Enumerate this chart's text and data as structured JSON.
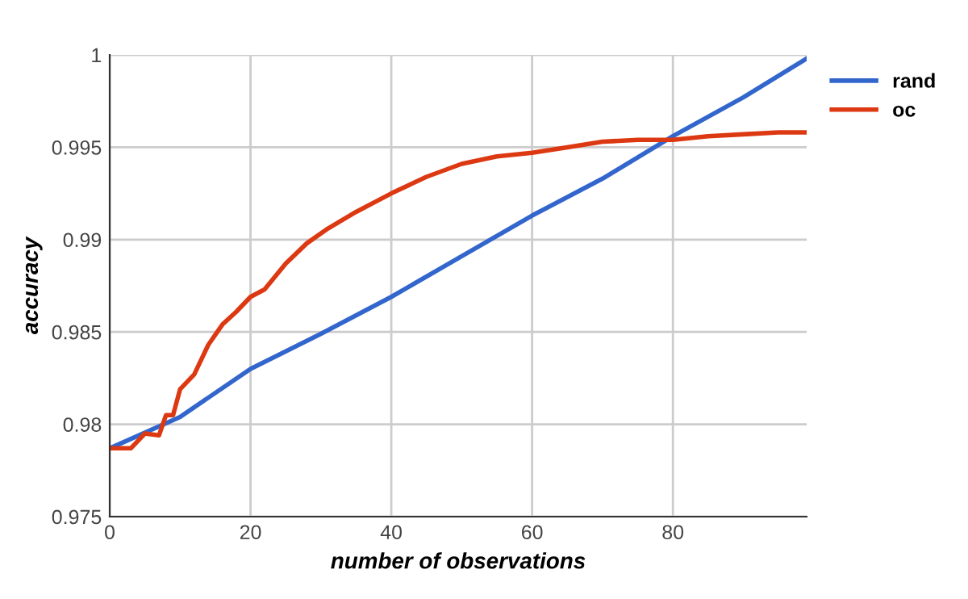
{
  "chart_data": {
    "type": "line",
    "xlabel": "number of observations",
    "ylabel": "accuracy",
    "xlim": [
      0,
      99
    ],
    "ylim": [
      0.975,
      1
    ],
    "xticks": [
      0,
      20,
      40,
      60,
      80
    ],
    "yticks": [
      0.975,
      0.98,
      0.985,
      0.99,
      0.995,
      1
    ],
    "grid": true,
    "legend": "top right",
    "marker": "none",
    "line_style": "solid",
    "series": [
      {
        "name": "rand",
        "color": "#3366cc",
        "x": [
          0,
          10,
          20,
          30,
          40,
          50,
          60,
          70,
          80,
          90,
          99
        ],
        "values": [
          0.9787,
          0.9804,
          0.983,
          0.9849,
          0.9869,
          0.9891,
          0.9913,
          0.9933,
          0.9956,
          0.9977,
          0.9998
        ]
      },
      {
        "name": "oc",
        "color": "#dc3912",
        "x": [
          0,
          3,
          5,
          7,
          8,
          9,
          10,
          12,
          14,
          16,
          18,
          20,
          22,
          25,
          28,
          31,
          35,
          40,
          45,
          50,
          55,
          60,
          65,
          70,
          75,
          80,
          85,
          90,
          95,
          99
        ],
        "values": [
          0.9787,
          0.9787,
          0.9795,
          0.9794,
          0.9805,
          0.9805,
          0.9819,
          0.9827,
          0.9843,
          0.9854,
          0.9861,
          0.9869,
          0.9873,
          0.9887,
          0.9898,
          0.9906,
          0.9915,
          0.9925,
          0.9934,
          0.9941,
          0.9945,
          0.9947,
          0.995,
          0.9953,
          0.9954,
          0.9954,
          0.9956,
          0.9957,
          0.9958,
          0.9958
        ]
      }
    ]
  }
}
